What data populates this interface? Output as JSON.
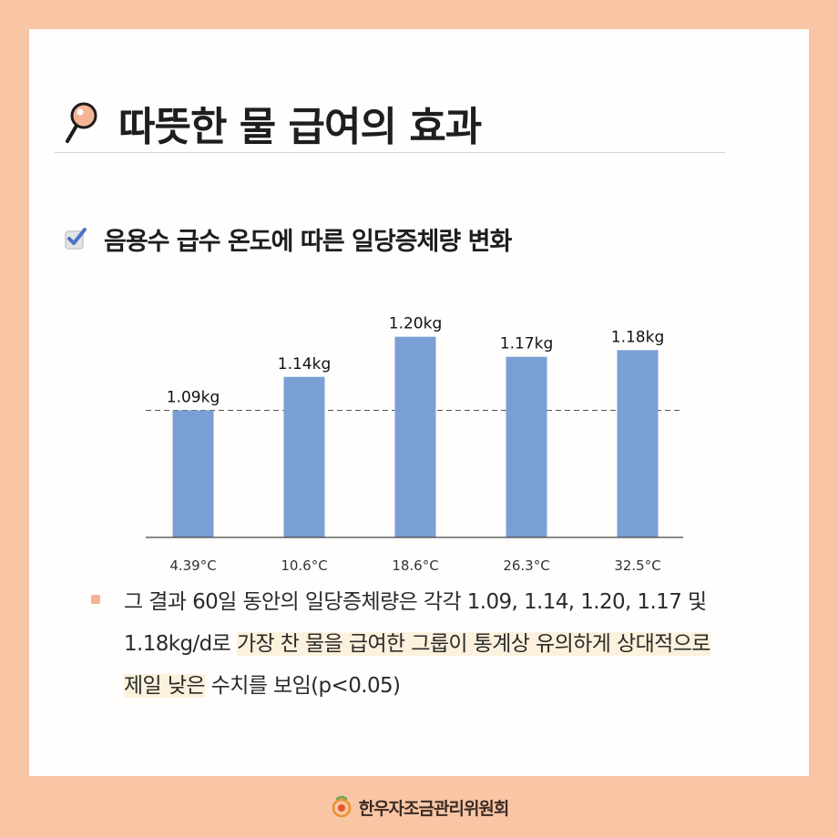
{
  "header": {
    "title": "따뜻한 물 급여의 효과"
  },
  "section": {
    "subtitle": "음용수 급수 온도에 따른 일당증체량 변화"
  },
  "chart_data": {
    "type": "bar",
    "categories": [
      "4.39°C",
      "10.6°C",
      "18.6°C",
      "26.3°C",
      "32.5°C"
    ],
    "values": [
      1.09,
      1.14,
      1.2,
      1.17,
      1.18
    ],
    "data_labels": [
      "1.09kg",
      "1.14kg",
      "1.20kg",
      "1.17kg",
      "1.18kg"
    ],
    "reference_line": 1.09,
    "ylim": [
      0.9,
      1.22
    ],
    "title": "",
    "xlabel": "",
    "ylabel": "",
    "bar_color": "#7a9fd4",
    "grid": false
  },
  "note": {
    "part1": "그 결과 60일 동안의 일당증체량은 각각 1.09, 1.14, 1.20, 1.17 및 1.18kg/d로 ",
    "highlight": "가장 찬 물을 급여한 그룹이 통계상 유의하게 상대적으로 제일 낮은",
    "part2": " 수치를 보임(p<0.05)"
  },
  "footer": {
    "org_name": "한우자조금관리위원회"
  },
  "colors": {
    "background": "#f8c6a5",
    "card": "#fffefc",
    "bar": "#7a9fd4",
    "bullet": "#f4b394",
    "highlight": "#fcf1dc"
  },
  "icons": {
    "title": "magnifier-icon",
    "subtitle": "checkbox-checked-icon",
    "footer": "hanwoo-logo-icon"
  }
}
